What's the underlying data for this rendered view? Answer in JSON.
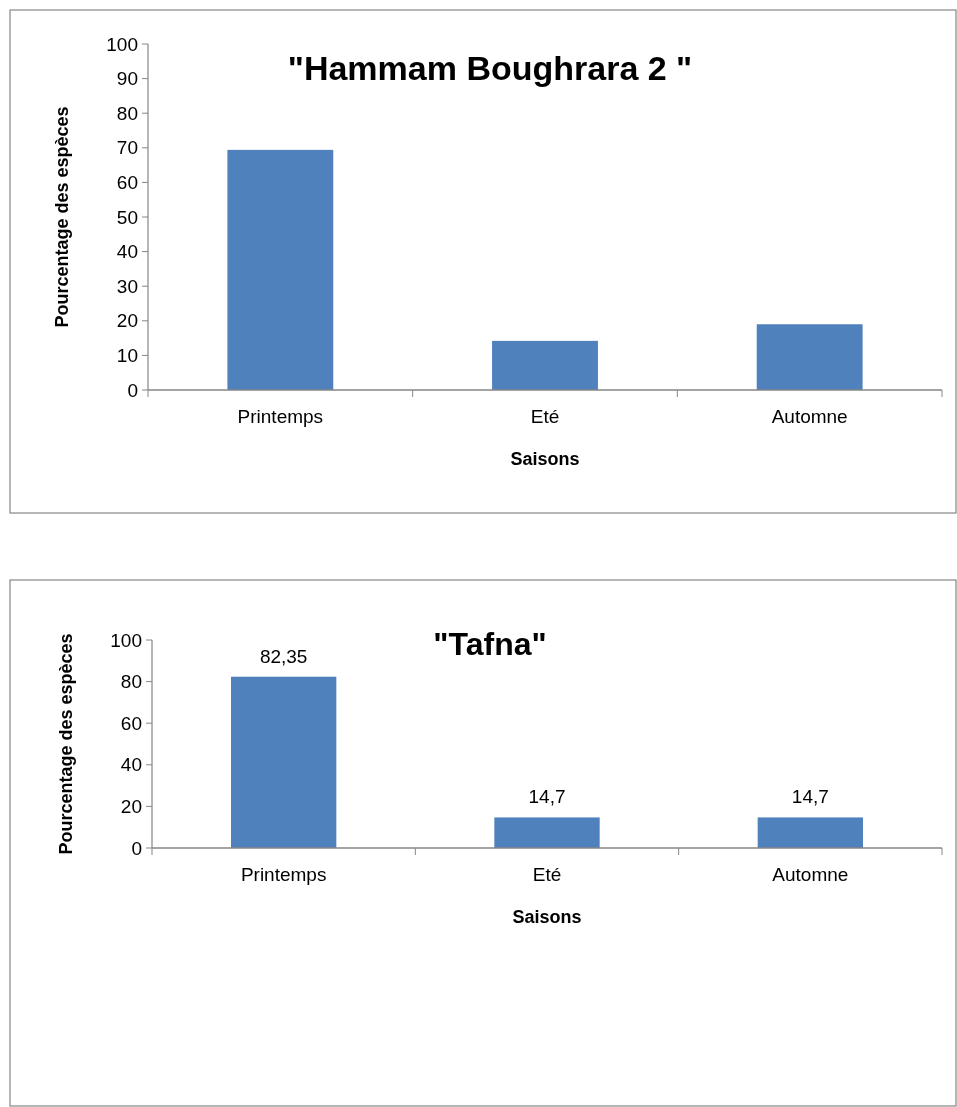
{
  "chart_data": [
    {
      "type": "bar",
      "title": "\"Hammam Boughrara 2 \"",
      "xlabel": "Saisons",
      "ylabel": "Pourcentage des espèces",
      "categories": [
        "Printemps",
        "Eté",
        "Automne"
      ],
      "values": [
        69.4,
        14.2,
        19
      ],
      "color": "#4f81bd",
      "ylim": [
        0,
        100
      ],
      "yticks": [
        0,
        10,
        20,
        30,
        40,
        50,
        60,
        70,
        80,
        90,
        100
      ],
      "grid": false
    },
    {
      "type": "bar",
      "title": "\"Tafna\"",
      "xlabel": "Saisons",
      "ylabel": "Pourcentage des espèces",
      "categories": [
        "Printemps",
        "Eté",
        "Automne"
      ],
      "values": [
        82.35,
        14.7,
        14.7
      ],
      "value_labels": [
        "82,35",
        "14,7",
        "14,7"
      ],
      "color": "#4f81bd",
      "ylim": [
        0,
        100
      ],
      "yticks": [
        0,
        20,
        40,
        60,
        80,
        100
      ],
      "grid": false
    }
  ]
}
